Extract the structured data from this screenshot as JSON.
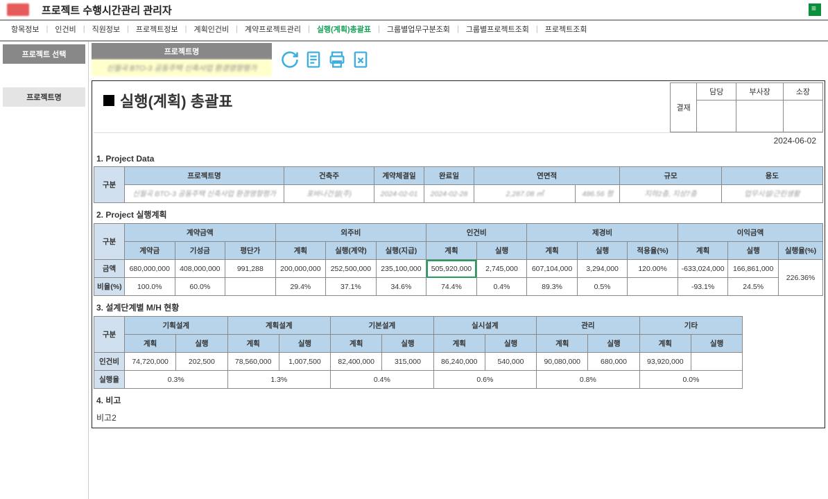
{
  "app_title": "프로젝트 수행시간관리 관리자",
  "menu": {
    "items": [
      "항목정보",
      "인건비",
      "직원정보",
      "프로젝트정보",
      "계획인건비",
      "계약프로젝트관리",
      "실행(계획)총괄표",
      "그룹별업무구분조회",
      "그룹별프로젝트조회",
      "프로젝트조회"
    ],
    "active_index": 6
  },
  "sidebar": {
    "select_btn": "프로젝트 선택",
    "name_btn": "프로젝트명"
  },
  "project_header": {
    "label": "프로젝트명",
    "name": "신월곡 BTO-3 공동주택 신축사업 환경영향평가"
  },
  "report": {
    "title": "실행(계획) 총괄표",
    "approval_label": "결재",
    "approvers": [
      "담당",
      "부사장",
      "소장"
    ],
    "date": "2024-06-02"
  },
  "sec1": {
    "title": "1. Project Data",
    "row_label": "구분",
    "headers": [
      "프로젝트명",
      "건축주",
      "계약체결일",
      "완료일",
      "연면적",
      "규모",
      "용도"
    ],
    "values": [
      "신월곡 BTO-3 공동주택 신축사업 환경영향평가",
      "포바나건설(주)",
      "2024-02-01",
      "2024-02-28",
      "2,287.08 ㎡",
      "486.56 평",
      "지하2층, 지상7층",
      "업무시설/근린생활"
    ]
  },
  "sec2": {
    "title": "2. Project 실행계획",
    "row_label": "구분",
    "group_headers": [
      "계약금액",
      "외주비",
      "인건비",
      "제경비",
      "이익금액"
    ],
    "sub_headers": [
      "계약금",
      "기성금",
      "평단가",
      "계획",
      "실행(계약)",
      "실행(지급)",
      "계획",
      "실행",
      "계획",
      "실행",
      "적용율(%)",
      "계획",
      "실행",
      "실행율(%)"
    ],
    "amount_label": "금액",
    "amount_row": [
      "680,000,000",
      "408,000,000",
      "991,288",
      "200,000,000",
      "252,500,000",
      "235,100,000",
      "505,920,000",
      "2,745,000",
      "607,104,000",
      "3,294,000",
      "120.00%",
      "-633,024,000",
      "166,861,000"
    ],
    "ratio_label": "비율(%)",
    "ratio_row": [
      "100.0%",
      "60.0%",
      "",
      "29.4%",
      "37.1%",
      "34.6%",
      "74.4%",
      "0.4%",
      "89.3%",
      "0.5%",
      "",
      "-93.1%",
      "24.5%"
    ],
    "exec_rate": "226.36%",
    "highlight_col": 6
  },
  "sec3": {
    "title": "3. 설계단계별 M/H 현황",
    "row_label": "구분",
    "group_headers": [
      "기획설계",
      "계획설계",
      "기본설계",
      "실시설계",
      "관리",
      "기타"
    ],
    "sub_headers": [
      "계획",
      "실행",
      "계획",
      "실행",
      "계획",
      "실행",
      "계획",
      "실행",
      "계획",
      "실행",
      "계획",
      "실행"
    ],
    "labor_label": "인건비",
    "labor_row": [
      "74,720,000",
      "202,500",
      "78,560,000",
      "1,007,500",
      "82,400,000",
      "315,000",
      "86,240,000",
      "540,000",
      "90,080,000",
      "680,000",
      "93,920,000",
      ""
    ],
    "rate_label": "실행율",
    "rate_row": [
      "0.3%",
      "1.3%",
      "0.4%",
      "0.6%",
      "0.8%",
      "0.0%"
    ]
  },
  "sec4": {
    "title": "4. 비고",
    "text": "비고2"
  },
  "colors": {
    "accent": "#3bb0e0",
    "header_bg": "#b8d4ea",
    "green": "#1aa05a"
  }
}
